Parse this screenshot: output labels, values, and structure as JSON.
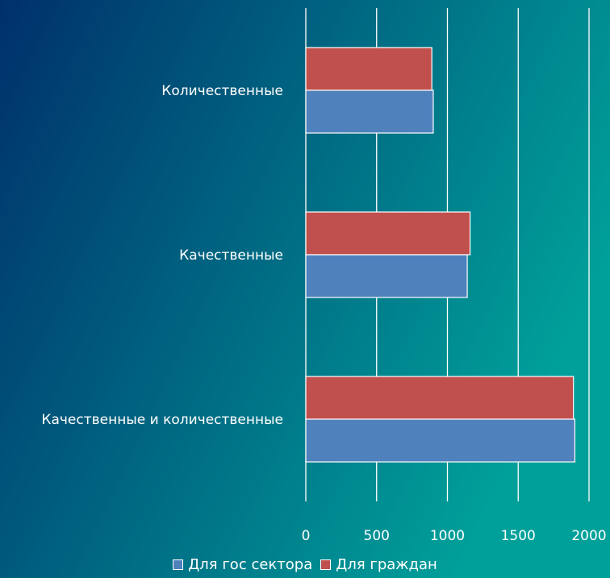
{
  "chart_data": {
    "type": "bar",
    "orientation": "horizontal",
    "categories": [
      "Количественные",
      "Качественные",
      "Качественные и количественные"
    ],
    "series": [
      {
        "name": "Для гос сектора",
        "values": [
          900,
          1140,
          1900
        ],
        "color": "#4f81bd"
      },
      {
        "name": "Для граждан",
        "values": [
          890,
          1160,
          1890
        ],
        "color": "#c0504d"
      }
    ],
    "xlim": [
      0,
      2000
    ],
    "xticks": [
      0,
      500,
      1000,
      1500,
      2000
    ],
    "xtick_labels": [
      "0",
      "500",
      "1000",
      "1500",
      "2000"
    ],
    "grid": "vertical",
    "legend_position": "bottom",
    "background": {
      "from": "#00306b",
      "to": "#00a09a"
    },
    "gridline_color": "#ffffff",
    "bar_border_color": "#ffffff"
  }
}
